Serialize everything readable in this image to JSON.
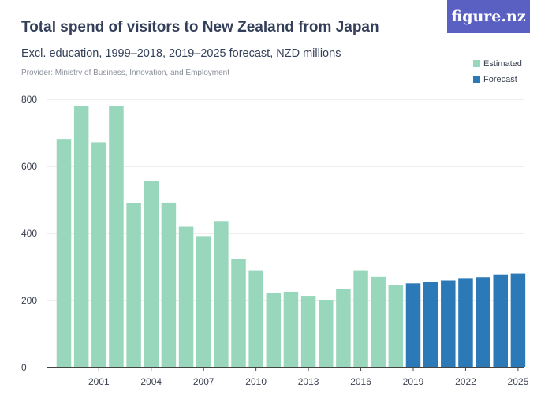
{
  "header": {
    "title": "Total spend of visitors to New Zealand from Japan",
    "subtitle": "Excl. education, 1999–2018, 2019–2025 forecast, NZD millions",
    "provider": "Provider: Ministry of Business, Innovation, and Employment",
    "logo_text": "figure.nz"
  },
  "colors": {
    "estimated": "#98d7bb",
    "forecast": "#2b79b6",
    "grid": "#dcdcdc",
    "axis": "#444444"
  },
  "chart_data": {
    "type": "bar",
    "title": "Total spend of visitors to New Zealand from Japan",
    "subtitle": "Excl. education, 1999–2018, 2019–2025 forecast, NZD millions",
    "xlabel": "",
    "ylabel": "",
    "ylim": [
      0,
      800
    ],
    "yticks": [
      0,
      200,
      400,
      600,
      800
    ],
    "xtick_labels": [
      "2001",
      "2004",
      "2007",
      "2010",
      "2013",
      "2016",
      "2019",
      "2022",
      "2025"
    ],
    "grid": true,
    "legend_position": "top-right",
    "categories": [
      "1999",
      "2000",
      "2001",
      "2002",
      "2003",
      "2004",
      "2005",
      "2006",
      "2007",
      "2008",
      "2009",
      "2010",
      "2011",
      "2012",
      "2013",
      "2014",
      "2015",
      "2016",
      "2017",
      "2018",
      "2019",
      "2020",
      "2021",
      "2022",
      "2023",
      "2024",
      "2025"
    ],
    "series": [
      {
        "name": "Estimated",
        "color": "#98d7bb",
        "values": [
          682,
          780,
          672,
          780,
          491,
          556,
          492,
          420,
          392,
          437,
          323,
          288,
          222,
          226,
          214,
          200,
          235,
          288,
          271,
          246,
          null,
          null,
          null,
          null,
          null,
          null,
          null
        ]
      },
      {
        "name": "Forecast",
        "color": "#2b79b6",
        "values": [
          null,
          null,
          null,
          null,
          null,
          null,
          null,
          null,
          null,
          null,
          null,
          null,
          null,
          null,
          null,
          null,
          null,
          null,
          null,
          null,
          251,
          255,
          260,
          265,
          270,
          276,
          281
        ]
      }
    ]
  }
}
